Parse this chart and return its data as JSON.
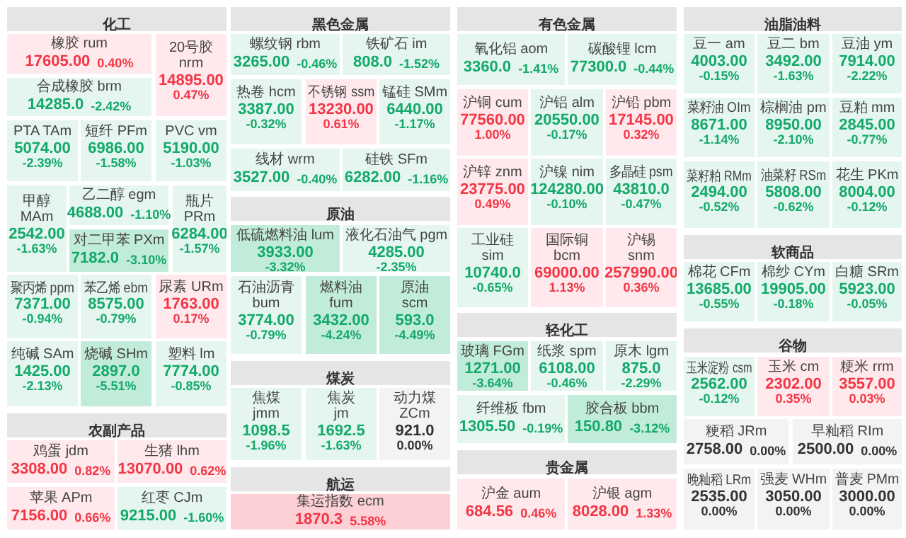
{
  "chart_data": [
    {
      "type": "other",
      "title": "化工",
      "categories": [
        "橡胶 rum",
        "20号胶 nrm",
        "合成橡胶 brm",
        "PTA TAm",
        "短纤 PFm",
        "PVC vm",
        "甲醇 MAm",
        "乙二醇 egm",
        "对二甲苯 PXm",
        "瓶片 PRm",
        "聚丙烯 ppm",
        "苯乙烯 ebm",
        "尿素 URm",
        "纯碱 SAm",
        "烧碱 SHm",
        "塑料 lm"
      ],
      "series": [
        {
          "values": [
            17605,
            14895,
            14285,
            5074,
            6986,
            5190,
            2542,
            4688,
            7182,
            6284,
            7371,
            8575,
            1763,
            1425,
            2897,
            7774
          ],
          "value_labels": [
            "17605.00",
            "14895.00",
            "14285.0",
            "5074.00",
            "6986.00",
            "5190.00",
            "2542.00",
            "4688.00",
            "7182.0",
            "6284.00",
            "7371.00",
            "8575.00",
            "1763.00",
            "1425.00",
            "2897.0",
            "7774.00"
          ],
          "colors": [
            "#ffe9ec",
            "#ffe9ec",
            "#e4f6ef",
            "#e4f6ef",
            "#e4f6ef",
            "#e4f6ef",
            "#e4f6ef",
            "#e4f6ef",
            "#c2ecda",
            "#e4f6ef",
            "#e4f6ef",
            "#e4f6ef",
            "#ffe9ec",
            "#e4f6ef",
            "#c2ecda",
            "#e4f6ef"
          ]
        },
        {
          "values": [
            0.4,
            0.47,
            -2.42,
            -2.39,
            -1.58,
            -1.03,
            -1.63,
            -1.1,
            -3.1,
            -1.57,
            -0.94,
            -0.79,
            0.17,
            -2.13,
            -5.51,
            -0.85
          ],
          "value_labels": [
            "0.40%",
            "0.47%",
            "-2.42%",
            "-2.39%",
            "-1.58%",
            "-1.03%",
            "-1.63%",
            "-1.10%",
            "-3.10%",
            "-1.57%",
            "-0.94%",
            "-0.79%",
            "0.17%",
            "-2.13%",
            "-5.51%",
            "-0.85%"
          ]
        }
      ]
    },
    {
      "type": "other",
      "title": "农副产品",
      "categories": [
        "鸡蛋 jdm",
        "生猪 lhm",
        "苹果 APm",
        "红枣 CJm"
      ],
      "series": [
        {
          "values": [
            3308,
            13070,
            7156,
            9215
          ],
          "value_labels": [
            "3308.00",
            "13070.00",
            "7156.00",
            "9215.00"
          ],
          "colors": [
            "#ffe9ec",
            "#ffe9ec",
            "#ffe9ec",
            "#e4f6ef"
          ]
        },
        {
          "values": [
            0.82,
            0.62,
            0.66,
            -1.6
          ],
          "value_labels": [
            "0.82%",
            "0.62%",
            "0.66%",
            "-1.60%"
          ]
        }
      ]
    },
    {
      "type": "other",
      "title": "黑色金属",
      "categories": [
        "螺纹钢 rbm",
        "铁矿石 im",
        "热卷 hcm",
        "不锈钢 ssm",
        "锰硅 SMm",
        "线材 wrm",
        "硅铁 SFm"
      ],
      "series": [
        {
          "values": [
            3265,
            808,
            3387,
            13230,
            6440,
            3527,
            6282
          ],
          "value_labels": [
            "3265.00",
            "808.0",
            "3387.00",
            "13230.00",
            "6440.00",
            "3527.00",
            "6282.00"
          ],
          "colors": [
            "#e4f6ef",
            "#e4f6ef",
            "#e4f6ef",
            "#ffe9ec",
            "#e4f6ef",
            "#e4f6ef",
            "#e4f6ef"
          ]
        },
        {
          "values": [
            -0.46,
            -1.52,
            -0.32,
            0.61,
            -1.17,
            -0.4,
            -1.16
          ],
          "value_labels": [
            "-0.46%",
            "-1.52%",
            "-0.32%",
            "0.61%",
            "-1.17%",
            "-0.40%",
            "-1.16%"
          ]
        }
      ]
    },
    {
      "type": "other",
      "title": "原油",
      "categories": [
        "低硫燃料油 lum",
        "液化石油气 pgm",
        "石油沥青 bum",
        "燃料油 fum",
        "原油 scm"
      ],
      "series": [
        {
          "values": [
            3933,
            4285,
            3774,
            3432,
            593
          ],
          "value_labels": [
            "3933.00",
            "4285.00",
            "3774.00",
            "3432.00",
            "593.0"
          ],
          "colors": [
            "#c2ecda",
            "#e4f6ef",
            "#e4f6ef",
            "#c2ecda",
            "#c2ecda"
          ]
        },
        {
          "values": [
            -3.32,
            -2.35,
            -0.79,
            -4.24,
            -4.49
          ],
          "value_labels": [
            "-3.32%",
            "-2.35%",
            "-0.79%",
            "-4.24%",
            "-4.49%"
          ]
        }
      ]
    },
    {
      "type": "other",
      "title": "煤炭",
      "categories": [
        "焦煤 jmm",
        "焦炭 jm",
        "动力煤 ZCm"
      ],
      "series": [
        {
          "values": [
            1098.5,
            1692.5,
            921
          ],
          "value_labels": [
            "1098.5",
            "1692.5",
            "921.0"
          ],
          "colors": [
            "#e4f6ef",
            "#e4f6ef",
            "#f3f3f3"
          ]
        },
        {
          "values": [
            -1.96,
            -1.63,
            0
          ],
          "value_labels": [
            "-1.96%",
            "-1.63%",
            "0.00%"
          ]
        }
      ]
    },
    {
      "type": "other",
      "title": "航运",
      "categories": [
        "集运指数 ecm"
      ],
      "series": [
        {
          "values": [
            1870.3
          ],
          "value_labels": [
            "1870.3"
          ],
          "colors": [
            "#fdd0d5"
          ]
        },
        {
          "values": [
            5.58
          ],
          "value_labels": [
            "5.58%"
          ]
        }
      ]
    },
    {
      "type": "other",
      "title": "有色金属",
      "categories": [
        "氧化铝 aom",
        "碳酸锂 lcm",
        "沪铜 cum",
        "沪铝 alm",
        "沪铅 pbm",
        "沪锌 znm",
        "沪镍 nim",
        "多晶硅 psm",
        "工业硅 sim",
        "国际铜 bcm",
        "沪锡 snm"
      ],
      "series": [
        {
          "values": [
            3360,
            77300,
            77560,
            20550,
            17145,
            23775,
            124280,
            43810,
            10740,
            69000,
            257990
          ],
          "value_labels": [
            "3360.0",
            "77300.0",
            "77560.00",
            "20550.00",
            "17145.00",
            "23775.00",
            "124280.00",
            "43810.0",
            "10740.0",
            "69000.00",
            "257990.00"
          ],
          "colors": [
            "#e4f6ef",
            "#e4f6ef",
            "#ffe9ec",
            "#e4f6ef",
            "#ffe9ec",
            "#ffe9ec",
            "#e4f6ef",
            "#e4f6ef",
            "#e4f6ef",
            "#ffe9ec",
            "#ffe9ec"
          ]
        },
        {
          "values": [
            -1.41,
            -0.44,
            1.0,
            -0.17,
            0.32,
            0.49,
            -0.1,
            -0.47,
            -0.65,
            1.13,
            0.36
          ],
          "value_labels": [
            "-1.41%",
            "-0.44%",
            "1.00%",
            "-0.17%",
            "0.32%",
            "0.49%",
            "-0.10%",
            "-0.47%",
            "-0.65%",
            "1.13%",
            "0.36%"
          ]
        }
      ]
    },
    {
      "type": "other",
      "title": "轻化工",
      "categories": [
        "玻璃 FGm",
        "纸浆 spm",
        "原木 lgm",
        "纤维板 fbm",
        "胶合板 bbm"
      ],
      "series": [
        {
          "values": [
            1271,
            6108,
            875,
            1305.5,
            150.8
          ],
          "value_labels": [
            "1271.00",
            "6108.00",
            "875.0",
            "1305.50",
            "150.80"
          ],
          "colors": [
            "#c2ecda",
            "#e4f6ef",
            "#e4f6ef",
            "#e4f6ef",
            "#c2ecda"
          ]
        },
        {
          "values": [
            -3.64,
            -0.46,
            -2.29,
            -0.19,
            -3.12
          ],
          "value_labels": [
            "-3.64%",
            "-0.46%",
            "-2.29%",
            "-0.19%",
            "-3.12%"
          ]
        }
      ]
    },
    {
      "type": "other",
      "title": "贵金属",
      "categories": [
        "沪金 aum",
        "沪银 agm"
      ],
      "series": [
        {
          "values": [
            684.56,
            8028
          ],
          "value_labels": [
            "684.56",
            "8028.00"
          ],
          "colors": [
            "#ffe9ec",
            "#ffe9ec"
          ]
        },
        {
          "values": [
            0.46,
            1.33
          ],
          "value_labels": [
            "0.46%",
            "1.33%"
          ]
        }
      ]
    },
    {
      "type": "other",
      "title": "油脂油料",
      "categories": [
        "豆一 am",
        "豆二 bm",
        "豆油 ym",
        "菜籽油 OIm",
        "棕榈油 pm",
        "豆粕 mm",
        "菜籽粕 RMm",
        "油菜籽 RSm",
        "花生 PKm"
      ],
      "series": [
        {
          "values": [
            4003,
            3492,
            7914,
            8671,
            8950,
            2845,
            2494,
            5808,
            8004
          ],
          "value_labels": [
            "4003.00",
            "3492.00",
            "7914.00",
            "8671.00",
            "8950.00",
            "2845.00",
            "2494.00",
            "5808.00",
            "8004.00"
          ],
          "colors": [
            "#e4f6ef",
            "#e4f6ef",
            "#e4f6ef",
            "#e4f6ef",
            "#e4f6ef",
            "#e4f6ef",
            "#e4f6ef",
            "#e4f6ef",
            "#e4f6ef"
          ]
        },
        {
          "values": [
            -0.15,
            -1.63,
            -2.22,
            -1.14,
            -2.1,
            -0.77,
            -0.52,
            -0.62,
            -0.12
          ],
          "value_labels": [
            "-0.15%",
            "-1.63%",
            "-2.22%",
            "-1.14%",
            "-2.10%",
            "-0.77%",
            "-0.52%",
            "-0.62%",
            "-0.12%"
          ]
        }
      ]
    },
    {
      "type": "other",
      "title": "软商品",
      "categories": [
        "棉花 CFm",
        "棉纱 CYm",
        "白糖 SRm"
      ],
      "series": [
        {
          "values": [
            13685,
            19905,
            5923
          ],
          "value_labels": [
            "13685.00",
            "19905.00",
            "5923.00"
          ],
          "colors": [
            "#e4f6ef",
            "#e4f6ef",
            "#e4f6ef"
          ]
        },
        {
          "values": [
            -0.55,
            -0.18,
            -0.05
          ],
          "value_labels": [
            "-0.55%",
            "-0.18%",
            "-0.05%"
          ]
        }
      ]
    },
    {
      "type": "other",
      "title": "谷物",
      "categories": [
        "玉米淀粉 csm",
        "玉米 cm",
        "粳米 rrm",
        "粳稻 JRm",
        "早籼稻 RIm",
        "晚籼稻 LRm",
        "强麦 WHm",
        "普麦 PMm"
      ],
      "series": [
        {
          "values": [
            2562,
            2302,
            3557,
            2758,
            2500,
            2535,
            3050,
            3000
          ],
          "value_labels": [
            "2562.00",
            "2302.00",
            "3557.00",
            "2758.00",
            "2500.00",
            "2535.00",
            "3050.00",
            "3000.00"
          ],
          "colors": [
            "#e4f6ef",
            "#ffe9ec",
            "#ffe9ec",
            "#f3f3f3",
            "#f3f3f3",
            "#f3f3f3",
            "#f3f3f3",
            "#f3f3f3"
          ]
        },
        {
          "values": [
            -0.12,
            0.35,
            0.03,
            0,
            0,
            0,
            0,
            0
          ],
          "value_labels": [
            "-0.12%",
            "0.35%",
            "0.03%",
            "0.00%",
            "0.00%",
            "0.00%",
            "0.00%",
            "0.00%"
          ]
        }
      ]
    }
  ]
}
